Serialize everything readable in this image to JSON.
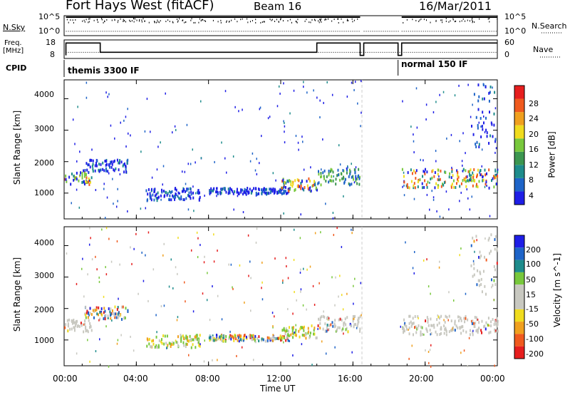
{
  "header": {
    "station": "Fort Hays West (fitACF)",
    "beam": "Beam 16",
    "date": "16/Mar/2011"
  },
  "colors": {
    "power": [
      "#1e1ee6",
      "#1e64c8",
      "#1e8c8c",
      "#3c9650",
      "#78c83c",
      "#f0dc1e",
      "#f0a01e",
      "#f05a1e",
      "#e61e1e"
    ],
    "velocity": [
      "#e61e1e",
      "#f05a1e",
      "#f0a01e",
      "#f0dc1e",
      "#c8c8c0",
      "#c8c8c0",
      "#78c83c",
      "#1e8c8c",
      "#1e64c8",
      "#1e1ee6"
    ],
    "ground_scatter": "#c8c8c0",
    "frame": "#000000"
  },
  "chart_data": [
    {
      "type": "line",
      "panel": "noise",
      "labels_left": [
        "N.Sky"
      ],
      "labels_right": [
        "N.Search"
      ],
      "yticks_left": [
        "10^5",
        "10^0"
      ],
      "yticks_right": [
        "10^5",
        "10^0"
      ],
      "x_range": [
        0,
        24
      ],
      "series": [
        {
          "name": "N.Sky",
          "style": "solid",
          "segments": [
            [
              0.1,
              16.4,
              0.93
            ],
            [
              18.7,
              24.0,
              0.93
            ]
          ]
        },
        {
          "name": "N.Search",
          "style": "dotted",
          "segments": [
            [
              0.1,
              16.4,
              0.22
            ],
            [
              16.6,
              18.6,
              0.22
            ],
            [
              18.7,
              24.0,
              0.22
            ]
          ]
        }
      ]
    },
    {
      "type": "line",
      "panel": "frequency",
      "labels_left": [
        "Freq.",
        "[MHz]"
      ],
      "labels_right": [
        "Nave"
      ],
      "yticks_left": [
        "18",
        "8"
      ],
      "yticks_right": [
        "60",
        "0"
      ],
      "x_range": [
        0,
        24
      ],
      "series": [
        {
          "name": "Freq.",
          "style": "solid",
          "points": [
            [
              0.1,
              8
            ],
            [
              0.1,
              16
            ],
            [
              2.0,
              16
            ],
            [
              2.0,
              10
            ],
            [
              14.0,
              10
            ],
            [
              14.0,
              16
            ],
            [
              16.4,
              16
            ],
            [
              16.4,
              8
            ],
            [
              16.6,
              8
            ],
            [
              16.6,
              16
            ],
            [
              18.5,
              16
            ],
            [
              18.5,
              8
            ],
            [
              18.7,
              8
            ],
            [
              18.7,
              16
            ],
            [
              24,
              16
            ]
          ]
        },
        {
          "name": "Nave",
          "style": "dotted",
          "points": [
            [
              0.1,
              10
            ],
            [
              24,
              10
            ]
          ]
        }
      ]
    },
    {
      "type": "table",
      "panel": "cpid",
      "label": "CPID",
      "modes": [
        {
          "start": 0.1,
          "end": 18.4,
          "label": "themis 3300 IF"
        },
        {
          "start": 18.6,
          "end": 24.0,
          "label": "normal 150 IF"
        }
      ]
    },
    {
      "type": "heatmap",
      "panel": "power",
      "ylabel": "Slant Range [km]",
      "xlim": [
        0,
        24
      ],
      "ylim": [
        180,
        4600
      ],
      "yticks": [
        1000,
        2000,
        3000,
        4000
      ],
      "colorbar": {
        "label": "Power [dB]",
        "ticks": [
          4,
          8,
          12,
          16,
          20,
          24,
          28
        ],
        "range": [
          0,
          30
        ]
      },
      "data_gap": [
        16.5,
        18.6
      ],
      "bands": [
        {
          "x": [
            0.0,
            1.5
          ],
          "y": [
            1300,
            1700
          ],
          "level": "high"
        },
        {
          "x": [
            1.0,
            3.5
          ],
          "y": [
            1700,
            2100
          ],
          "level": "low"
        },
        {
          "x": [
            4.5,
            7.5
          ],
          "y": [
            800,
            1200
          ],
          "level": "low"
        },
        {
          "x": [
            8.0,
            12.5
          ],
          "y": [
            1000,
            1200
          ],
          "level": "low"
        },
        {
          "x": [
            12.0,
            14.0
          ],
          "y": [
            1100,
            1500
          ],
          "level": "high"
        },
        {
          "x": [
            14.0,
            16.4
          ],
          "y": [
            1300,
            1800
          ],
          "level": "mid"
        },
        {
          "x": [
            18.7,
            24.0
          ],
          "y": [
            1200,
            1800
          ],
          "level": "high"
        },
        {
          "x": [
            22.5,
            24.0
          ],
          "y": [
            2500,
            4500
          ],
          "level": "low"
        }
      ]
    },
    {
      "type": "heatmap",
      "panel": "velocity",
      "ylabel": "Slant Range [km]",
      "xlabel": "Time UT",
      "xlim": [
        0,
        24
      ],
      "ylim": [
        180,
        4600
      ],
      "yticks": [
        1000,
        2000,
        3000,
        4000
      ],
      "xticks": [
        "00:00",
        "04:00",
        "08:00",
        "12:00",
        "16:00",
        "20:00",
        "00:00"
      ],
      "colorbar": {
        "label": "Velocity [m s^-1]",
        "ticks": [
          "200",
          "100",
          "50",
          "15",
          "-15",
          "-50",
          "-100",
          "-200"
        ],
        "range": [
          -250,
          250
        ]
      },
      "data_gap": [
        16.5,
        18.6
      ],
      "bands": [
        {
          "x": [
            0.0,
            1.5
          ],
          "y": [
            1300,
            1700
          ],
          "level": "ground"
        },
        {
          "x": [
            1.0,
            3.5
          ],
          "y": [
            1700,
            2100
          ],
          "level": "mixed"
        },
        {
          "x": [
            4.5,
            7.5
          ],
          "y": [
            800,
            1200
          ],
          "level": "positive"
        },
        {
          "x": [
            8.0,
            12.5
          ],
          "y": [
            1000,
            1200
          ],
          "level": "mixed"
        },
        {
          "x": [
            12.0,
            14.0
          ],
          "y": [
            1100,
            1500
          ],
          "level": "positive"
        },
        {
          "x": [
            14.0,
            16.4
          ],
          "y": [
            1300,
            1800
          ],
          "level": "ground"
        },
        {
          "x": [
            18.7,
            24.0
          ],
          "y": [
            1200,
            1800
          ],
          "level": "ground"
        },
        {
          "x": [
            22.5,
            24.0
          ],
          "y": [
            2500,
            4500
          ],
          "level": "ground"
        }
      ]
    }
  ]
}
